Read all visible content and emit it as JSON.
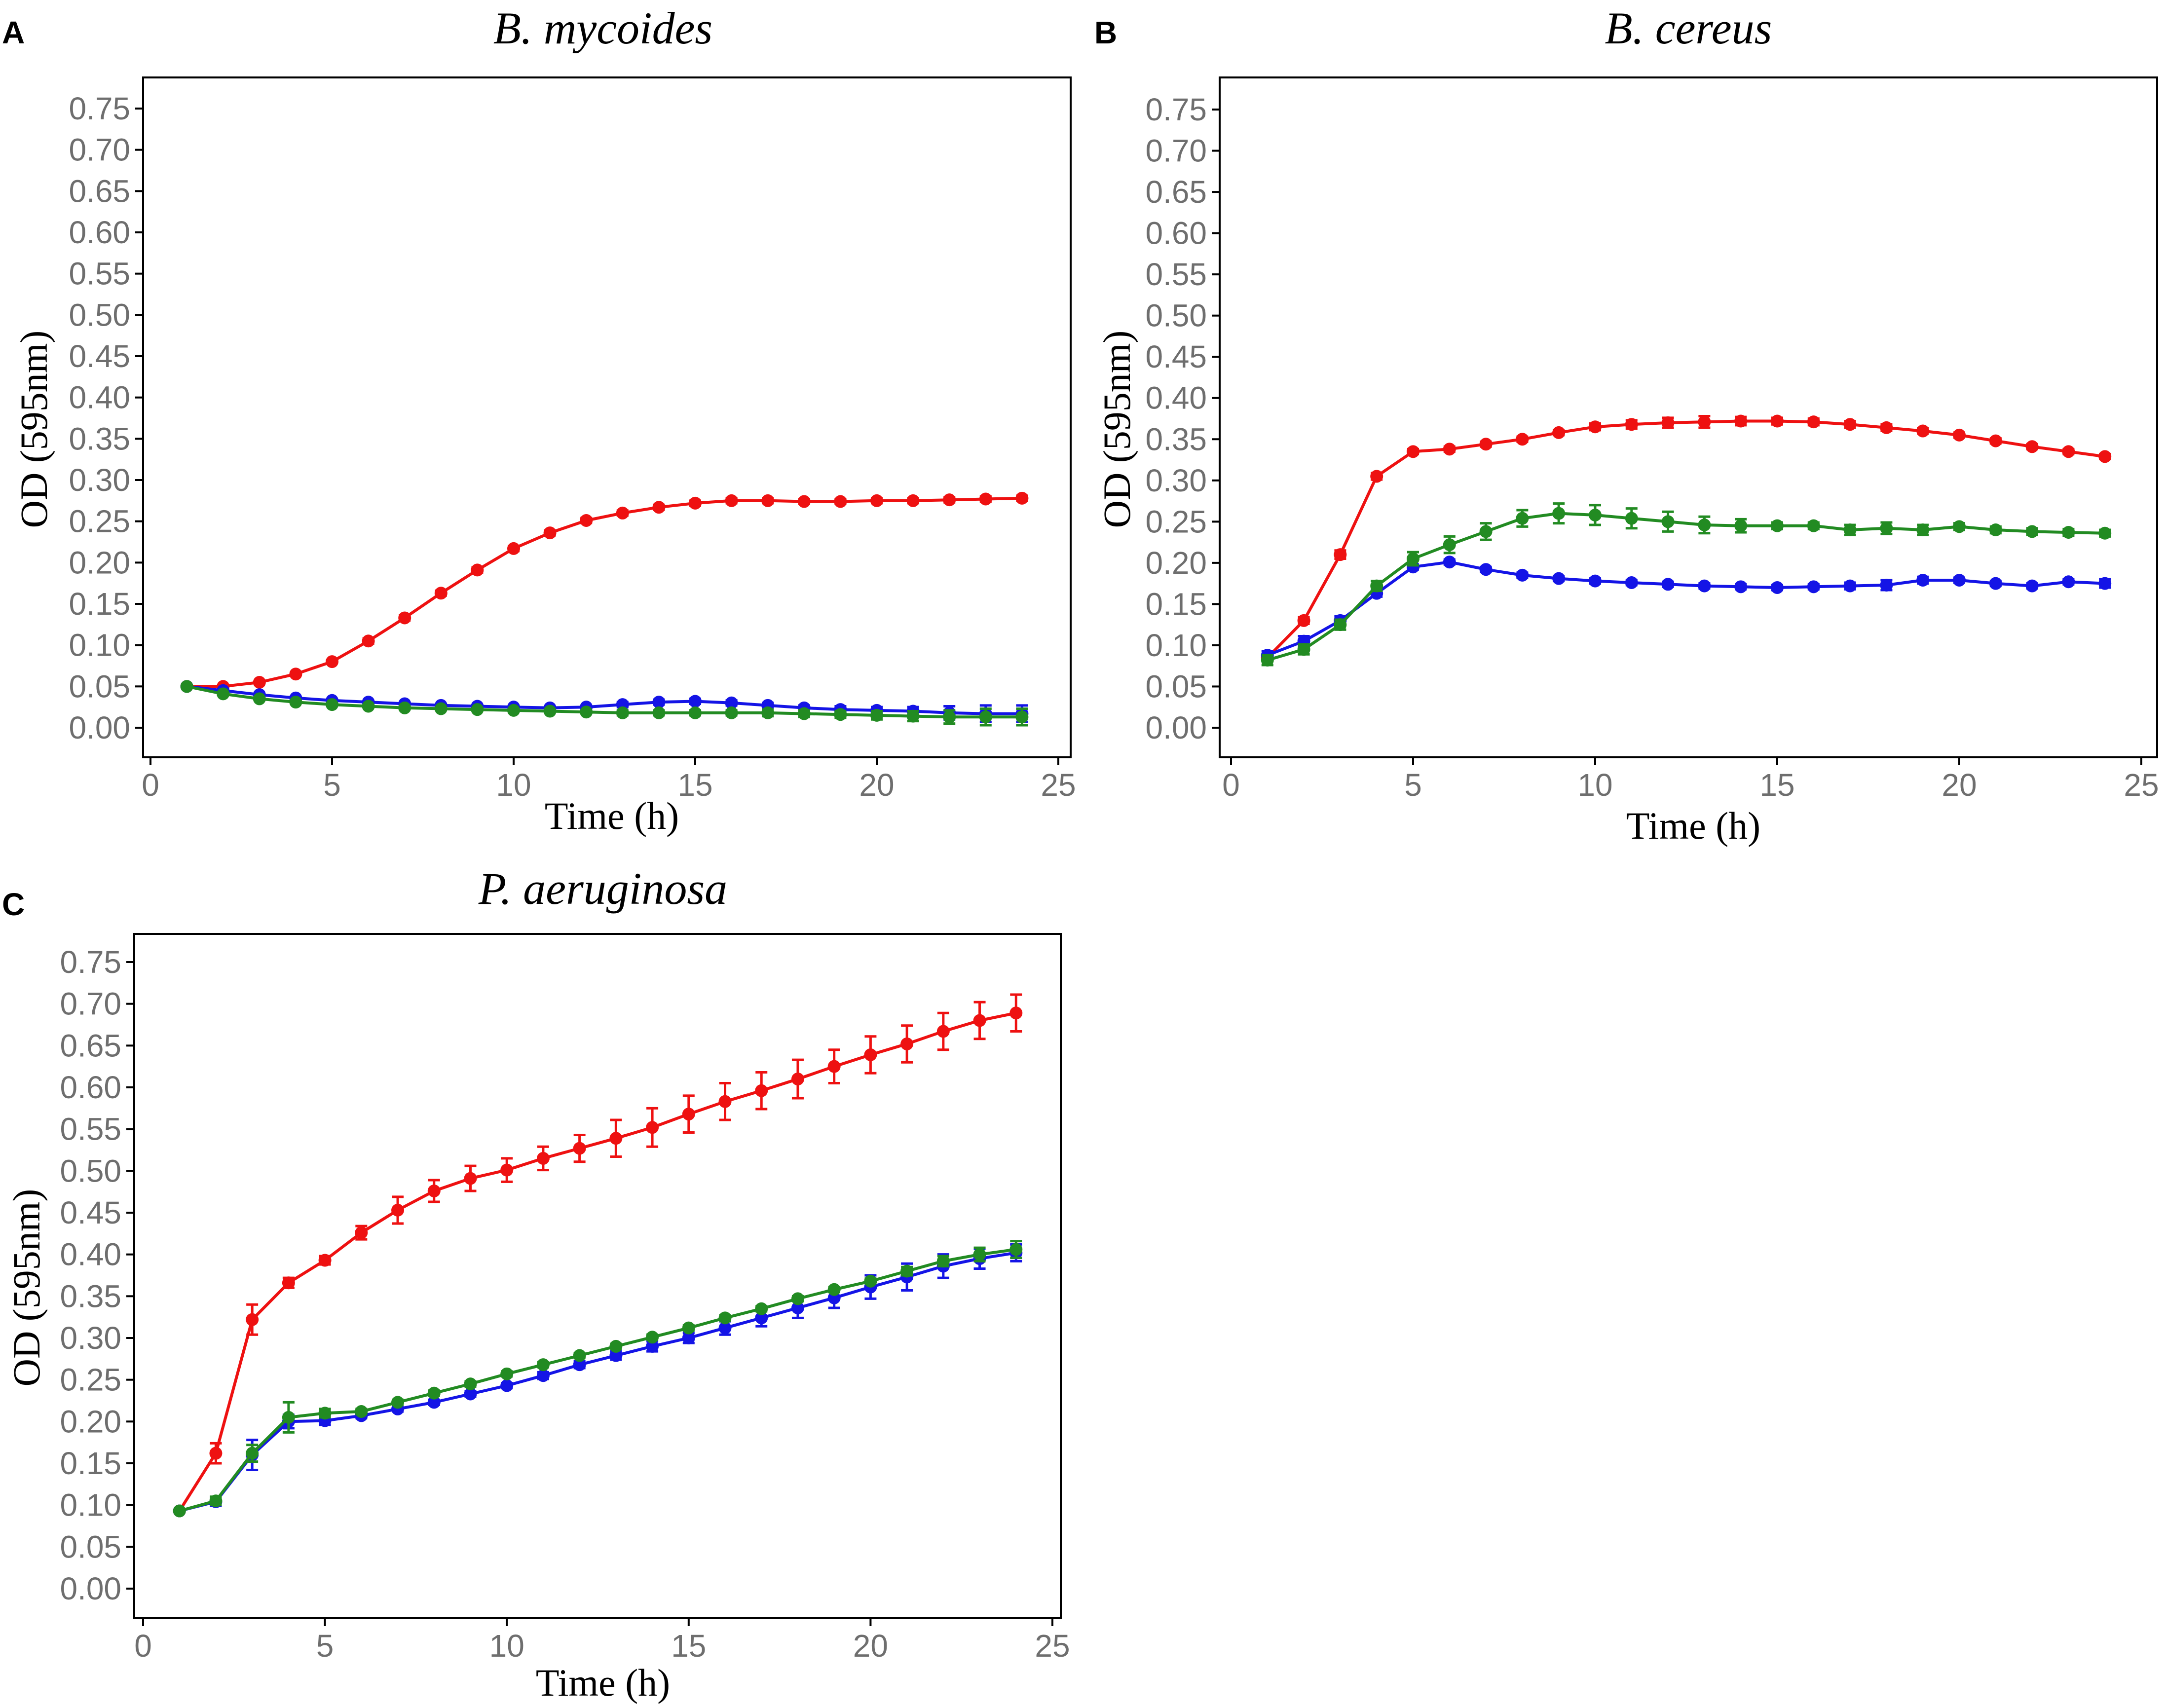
{
  "series_colors": {
    "red": "#ee1111",
    "blue": "#1414e6",
    "green": "#228b22"
  },
  "chart_data": [
    {
      "panel": "A",
      "type": "line",
      "title": "B. mycoides",
      "xlabel": "Time (h)",
      "ylabel": "OD (595nm)",
      "xlim": [
        0,
        25
      ],
      "ylim": [
        0,
        0.75
      ],
      "x_ticks": [
        "0",
        "5",
        "10",
        "15",
        "20",
        "25"
      ],
      "y_ticks": [
        "0.00",
        "0.05",
        "0.10",
        "0.15",
        "0.20",
        "0.25",
        "0.30",
        "0.35",
        "0.40",
        "0.45",
        "0.50",
        "0.55",
        "0.60",
        "0.65",
        "0.70",
        "0.75"
      ],
      "grid": false,
      "x": [
        1,
        2,
        3,
        4,
        5,
        6,
        7,
        8,
        9,
        10,
        11,
        12,
        13,
        14,
        15,
        16,
        17,
        18,
        19,
        20,
        21,
        22,
        23,
        24
      ],
      "series": [
        {
          "name": "red",
          "color": "#ee1111",
          "values": [
            0.05,
            0.05,
            0.055,
            0.065,
            0.08,
            0.105,
            0.133,
            0.163,
            0.191,
            0.217,
            0.236,
            0.251,
            0.26,
            0.267,
            0.272,
            0.275,
            0.275,
            0.274,
            0.274,
            0.275,
            0.275,
            0.276,
            0.277,
            0.278
          ],
          "errors": [
            0.002,
            0.002,
            0.002,
            0.002,
            0.002,
            0.003,
            0.003,
            0.003,
            0.003,
            0.003,
            0.003,
            0.003,
            0.003,
            0.003,
            0.003,
            0.003,
            0.003,
            0.003,
            0.003,
            0.003,
            0.003,
            0.003,
            0.003,
            0.003
          ]
        },
        {
          "name": "blue",
          "color": "#1414e6",
          "values": [
            0.05,
            0.045,
            0.04,
            0.036,
            0.033,
            0.031,
            0.029,
            0.027,
            0.026,
            0.025,
            0.024,
            0.025,
            0.028,
            0.031,
            0.032,
            0.03,
            0.027,
            0.024,
            0.022,
            0.021,
            0.02,
            0.018,
            0.017,
            0.017
          ],
          "errors": [
            0.002,
            0.002,
            0.002,
            0.002,
            0.002,
            0.002,
            0.002,
            0.002,
            0.002,
            0.002,
            0.002,
            0.002,
            0.003,
            0.003,
            0.003,
            0.003,
            0.003,
            0.003,
            0.004,
            0.004,
            0.005,
            0.008,
            0.01,
            0.01
          ]
        },
        {
          "name": "green",
          "color": "#228b22",
          "values": [
            0.05,
            0.041,
            0.035,
            0.031,
            0.028,
            0.026,
            0.024,
            0.023,
            0.022,
            0.021,
            0.02,
            0.019,
            0.018,
            0.018,
            0.018,
            0.018,
            0.018,
            0.017,
            0.016,
            0.015,
            0.014,
            0.013,
            0.013,
            0.013
          ],
          "errors": [
            0.002,
            0.002,
            0.002,
            0.002,
            0.002,
            0.002,
            0.002,
            0.002,
            0.002,
            0.002,
            0.002,
            0.002,
            0.003,
            0.003,
            0.003,
            0.003,
            0.004,
            0.004,
            0.004,
            0.005,
            0.006,
            0.008,
            0.01,
            0.01
          ]
        }
      ]
    },
    {
      "panel": "B",
      "type": "line",
      "title": "B. cereus",
      "xlabel": "Time (h)",
      "ylabel": "OD (595nm)",
      "xlim": [
        0,
        25
      ],
      "ylim": [
        0,
        0.75
      ],
      "x_ticks": [
        "0",
        "5",
        "10",
        "15",
        "20",
        "25"
      ],
      "y_ticks": [
        "0.00",
        "0.05",
        "0.10",
        "0.15",
        "0.20",
        "0.25",
        "0.30",
        "0.35",
        "0.40",
        "0.45",
        "0.50",
        "0.55",
        "0.60",
        "0.65",
        "0.70",
        "0.75"
      ],
      "grid": false,
      "x": [
        1,
        2,
        3,
        4,
        5,
        6,
        7,
        8,
        9,
        10,
        11,
        12,
        13,
        14,
        15,
        16,
        17,
        18,
        19,
        20,
        21,
        22,
        23,
        24
      ],
      "series": [
        {
          "name": "red",
          "color": "#ee1111",
          "values": [
            0.085,
            0.13,
            0.21,
            0.305,
            0.335,
            0.338,
            0.344,
            0.35,
            0.358,
            0.365,
            0.368,
            0.37,
            0.371,
            0.372,
            0.372,
            0.371,
            0.368,
            0.364,
            0.36,
            0.355,
            0.348,
            0.341,
            0.335,
            0.329
          ],
          "errors": [
            0.003,
            0.004,
            0.005,
            0.004,
            0.003,
            0.003,
            0.003,
            0.003,
            0.003,
            0.004,
            0.005,
            0.006,
            0.007,
            0.005,
            0.004,
            0.004,
            0.004,
            0.004,
            0.003,
            0.003,
            0.003,
            0.003,
            0.003,
            0.003
          ]
        },
        {
          "name": "blue",
          "color": "#1414e6",
          "values": [
            0.088,
            0.105,
            0.13,
            0.163,
            0.195,
            0.201,
            0.192,
            0.185,
            0.181,
            0.178,
            0.176,
            0.174,
            0.172,
            0.171,
            0.17,
            0.171,
            0.172,
            0.173,
            0.179,
            0.179,
            0.175,
            0.172,
            0.177,
            0.175
          ],
          "errors": [
            0.005,
            0.006,
            0.005,
            0.004,
            0.003,
            0.003,
            0.003,
            0.003,
            0.003,
            0.003,
            0.003,
            0.003,
            0.003,
            0.003,
            0.003,
            0.003,
            0.004,
            0.006,
            0.004,
            0.003,
            0.003,
            0.003,
            0.003,
            0.005
          ]
        },
        {
          "name": "green",
          "color": "#228b22",
          "values": [
            0.082,
            0.095,
            0.125,
            0.172,
            0.205,
            0.222,
            0.238,
            0.254,
            0.26,
            0.258,
            0.254,
            0.25,
            0.246,
            0.245,
            0.245,
            0.245,
            0.24,
            0.242,
            0.24,
            0.244,
            0.24,
            0.238,
            0.237,
            0.236
          ],
          "errors": [
            0.006,
            0.006,
            0.006,
            0.006,
            0.008,
            0.01,
            0.01,
            0.01,
            0.012,
            0.012,
            0.012,
            0.012,
            0.01,
            0.008,
            0.004,
            0.004,
            0.006,
            0.007,
            0.006,
            0.004,
            0.004,
            0.004,
            0.004,
            0.004
          ]
        }
      ]
    },
    {
      "panel": "C",
      "type": "line",
      "title": "P. aeruginosa",
      "xlabel": "Time (h)",
      "ylabel": "OD (595nm)",
      "xlim": [
        0,
        25
      ],
      "ylim": [
        0,
        0.75
      ],
      "x_ticks": [
        "0",
        "5",
        "10",
        "15",
        "20",
        "25"
      ],
      "y_ticks": [
        "0.00",
        "0.05",
        "0.10",
        "0.15",
        "0.20",
        "0.25",
        "0.30",
        "0.35",
        "0.40",
        "0.45",
        "0.50",
        "0.55",
        "0.60",
        "0.65",
        "0.70",
        "0.75"
      ],
      "grid": false,
      "x": [
        1,
        2,
        3,
        4,
        5,
        6,
        7,
        8,
        9,
        10,
        11,
        12,
        13,
        14,
        15,
        16,
        17,
        18,
        19,
        20,
        21,
        22,
        23,
        24
      ],
      "series": [
        {
          "name": "red",
          "color": "#ee1111",
          "values": [
            0.093,
            0.162,
            0.322,
            0.366,
            0.393,
            0.426,
            0.453,
            0.476,
            0.491,
            0.501,
            0.515,
            0.527,
            0.539,
            0.552,
            0.568,
            0.583,
            0.596,
            0.61,
            0.625,
            0.639,
            0.652,
            0.667,
            0.68,
            0.689
          ],
          "errors": [
            0.002,
            0.012,
            0.018,
            0.006,
            0.005,
            0.008,
            0.016,
            0.013,
            0.015,
            0.014,
            0.014,
            0.016,
            0.022,
            0.023,
            0.022,
            0.022,
            0.022,
            0.023,
            0.02,
            0.022,
            0.022,
            0.022,
            0.022,
            0.022
          ]
        },
        {
          "name": "blue",
          "color": "#1414e6",
          "values": [
            0.093,
            0.104,
            0.16,
            0.2,
            0.201,
            0.207,
            0.215,
            0.223,
            0.233,
            0.243,
            0.255,
            0.268,
            0.279,
            0.29,
            0.3,
            0.312,
            0.324,
            0.336,
            0.348,
            0.361,
            0.373,
            0.386,
            0.395,
            0.402
          ],
          "errors": [
            0.002,
            0.005,
            0.018,
            0.008,
            0.005,
            0.003,
            0.003,
            0.003,
            0.003,
            0.003,
            0.004,
            0.004,
            0.005,
            0.006,
            0.006,
            0.008,
            0.01,
            0.012,
            0.012,
            0.014,
            0.016,
            0.014,
            0.012,
            0.01
          ]
        },
        {
          "name": "green",
          "color": "#228b22",
          "values": [
            0.093,
            0.105,
            0.162,
            0.205,
            0.21,
            0.212,
            0.223,
            0.234,
            0.245,
            0.257,
            0.268,
            0.279,
            0.29,
            0.301,
            0.312,
            0.324,
            0.335,
            0.347,
            0.358,
            0.368,
            0.38,
            0.392,
            0.4,
            0.406
          ],
          "errors": [
            0.002,
            0.005,
            0.01,
            0.018,
            0.005,
            0.003,
            0.003,
            0.003,
            0.003,
            0.003,
            0.003,
            0.003,
            0.003,
            0.003,
            0.003,
            0.003,
            0.003,
            0.003,
            0.003,
            0.003,
            0.005,
            0.006,
            0.008,
            0.01
          ]
        }
      ]
    }
  ]
}
